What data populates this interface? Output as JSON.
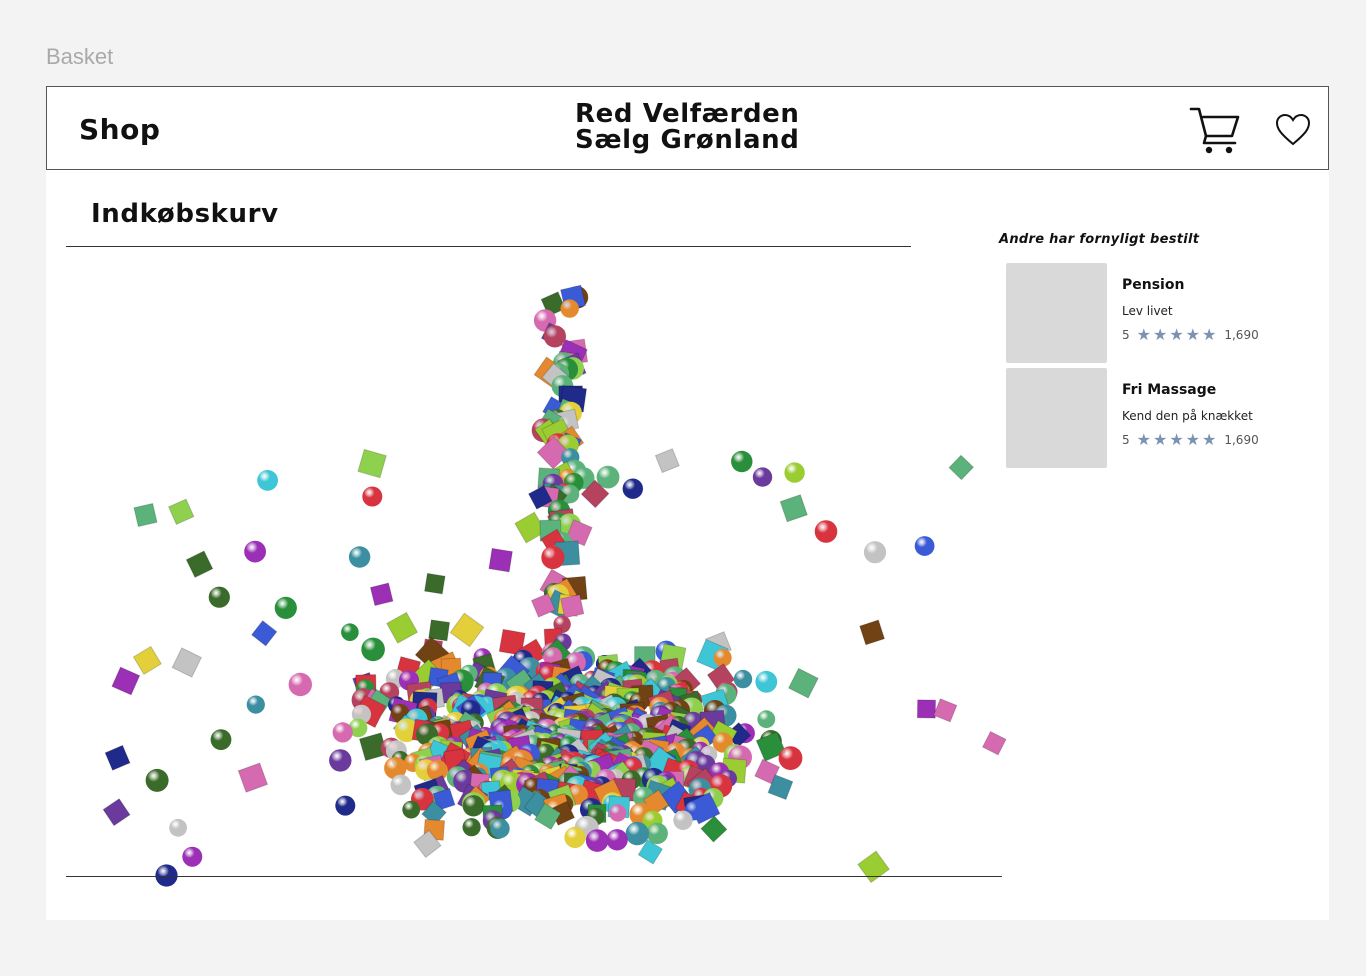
{
  "frame": {
    "label": "Basket"
  },
  "header": {
    "shop_label": "Shop",
    "brand_line1": "Red Velfærden",
    "brand_line2": "Sælg Grønland"
  },
  "main": {
    "title": "Indkøbskurv"
  },
  "sidebar": {
    "title": "Andre har fornyligt bestilt",
    "items": [
      {
        "name": "Pension",
        "description": "Lev livet",
        "score": "5",
        "stars": "★★★★★",
        "count": "1,690"
      },
      {
        "name": "Fri Massage",
        "description": "Kend den på knækket",
        "score": "5",
        "stars": "★★★★★",
        "count": "1,690"
      }
    ]
  },
  "colors": {
    "star": "#7a93b0",
    "thumb": "#d9d9d9",
    "palette": [
      "#d8343f",
      "#2a8f3a",
      "#3b5bd6",
      "#9b2fb5",
      "#e2cf3a",
      "#3fc6d6",
      "#e5892f",
      "#8fd14f",
      "#1f2a8a",
      "#b5425e",
      "#5bb27a",
      "#c3c3c3",
      "#6a3b9c",
      "#3c8fa0",
      "#d66ab0",
      "#9acd32",
      "#704214",
      "#3a6b2a"
    ]
  }
}
